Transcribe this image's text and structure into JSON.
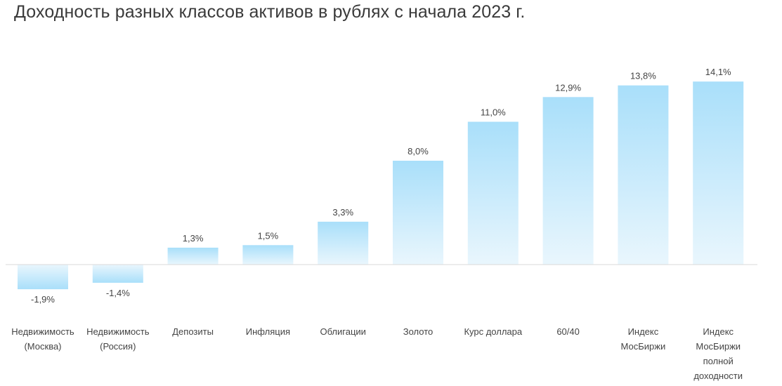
{
  "chart_data": {
    "type": "bar",
    "title": "Доходность разных классов активов в рублях с начала 2023 г.",
    "categories": [
      "Недвижимость (Москва)",
      "Недвижимость (Россия)",
      "Депозиты",
      "Инфляция",
      "Облигации",
      "Золото",
      "Курс доллара",
      "60/40",
      "Индекс МосБиржи",
      "Индекс МосБиржи полной доходности"
    ],
    "category_lines": [
      [
        "Недвижимость",
        "(Москва)"
      ],
      [
        "Недвижимость",
        "(Россия)"
      ],
      [
        "Депозиты"
      ],
      [
        "Инфляция"
      ],
      [
        "Облигации"
      ],
      [
        "Золото"
      ],
      [
        "Курс доллара"
      ],
      [
        "60/40"
      ],
      [
        "Индекс",
        "МосБиржи"
      ],
      [
        "Индекс",
        "МосБиржи",
        "полной",
        "доходности"
      ]
    ],
    "values": [
      -1.9,
      -1.4,
      1.3,
      1.5,
      3.3,
      8.0,
      11.0,
      12.9,
      13.8,
      14.1
    ],
    "value_labels": [
      "-1,9%",
      "-1,4%",
      "1,3%",
      "1,5%",
      "3,3%",
      "8,0%",
      "11,0%",
      "12,9%",
      "13,8%",
      "14,1%"
    ],
    "unit": "%",
    "xlabel": "",
    "ylabel": "",
    "grid": false,
    "legend": "none",
    "colors": {
      "bar_top": "#a9dffa",
      "bar_bottom": "#e9f6fd",
      "baseline": "#d9d9d9"
    }
  }
}
